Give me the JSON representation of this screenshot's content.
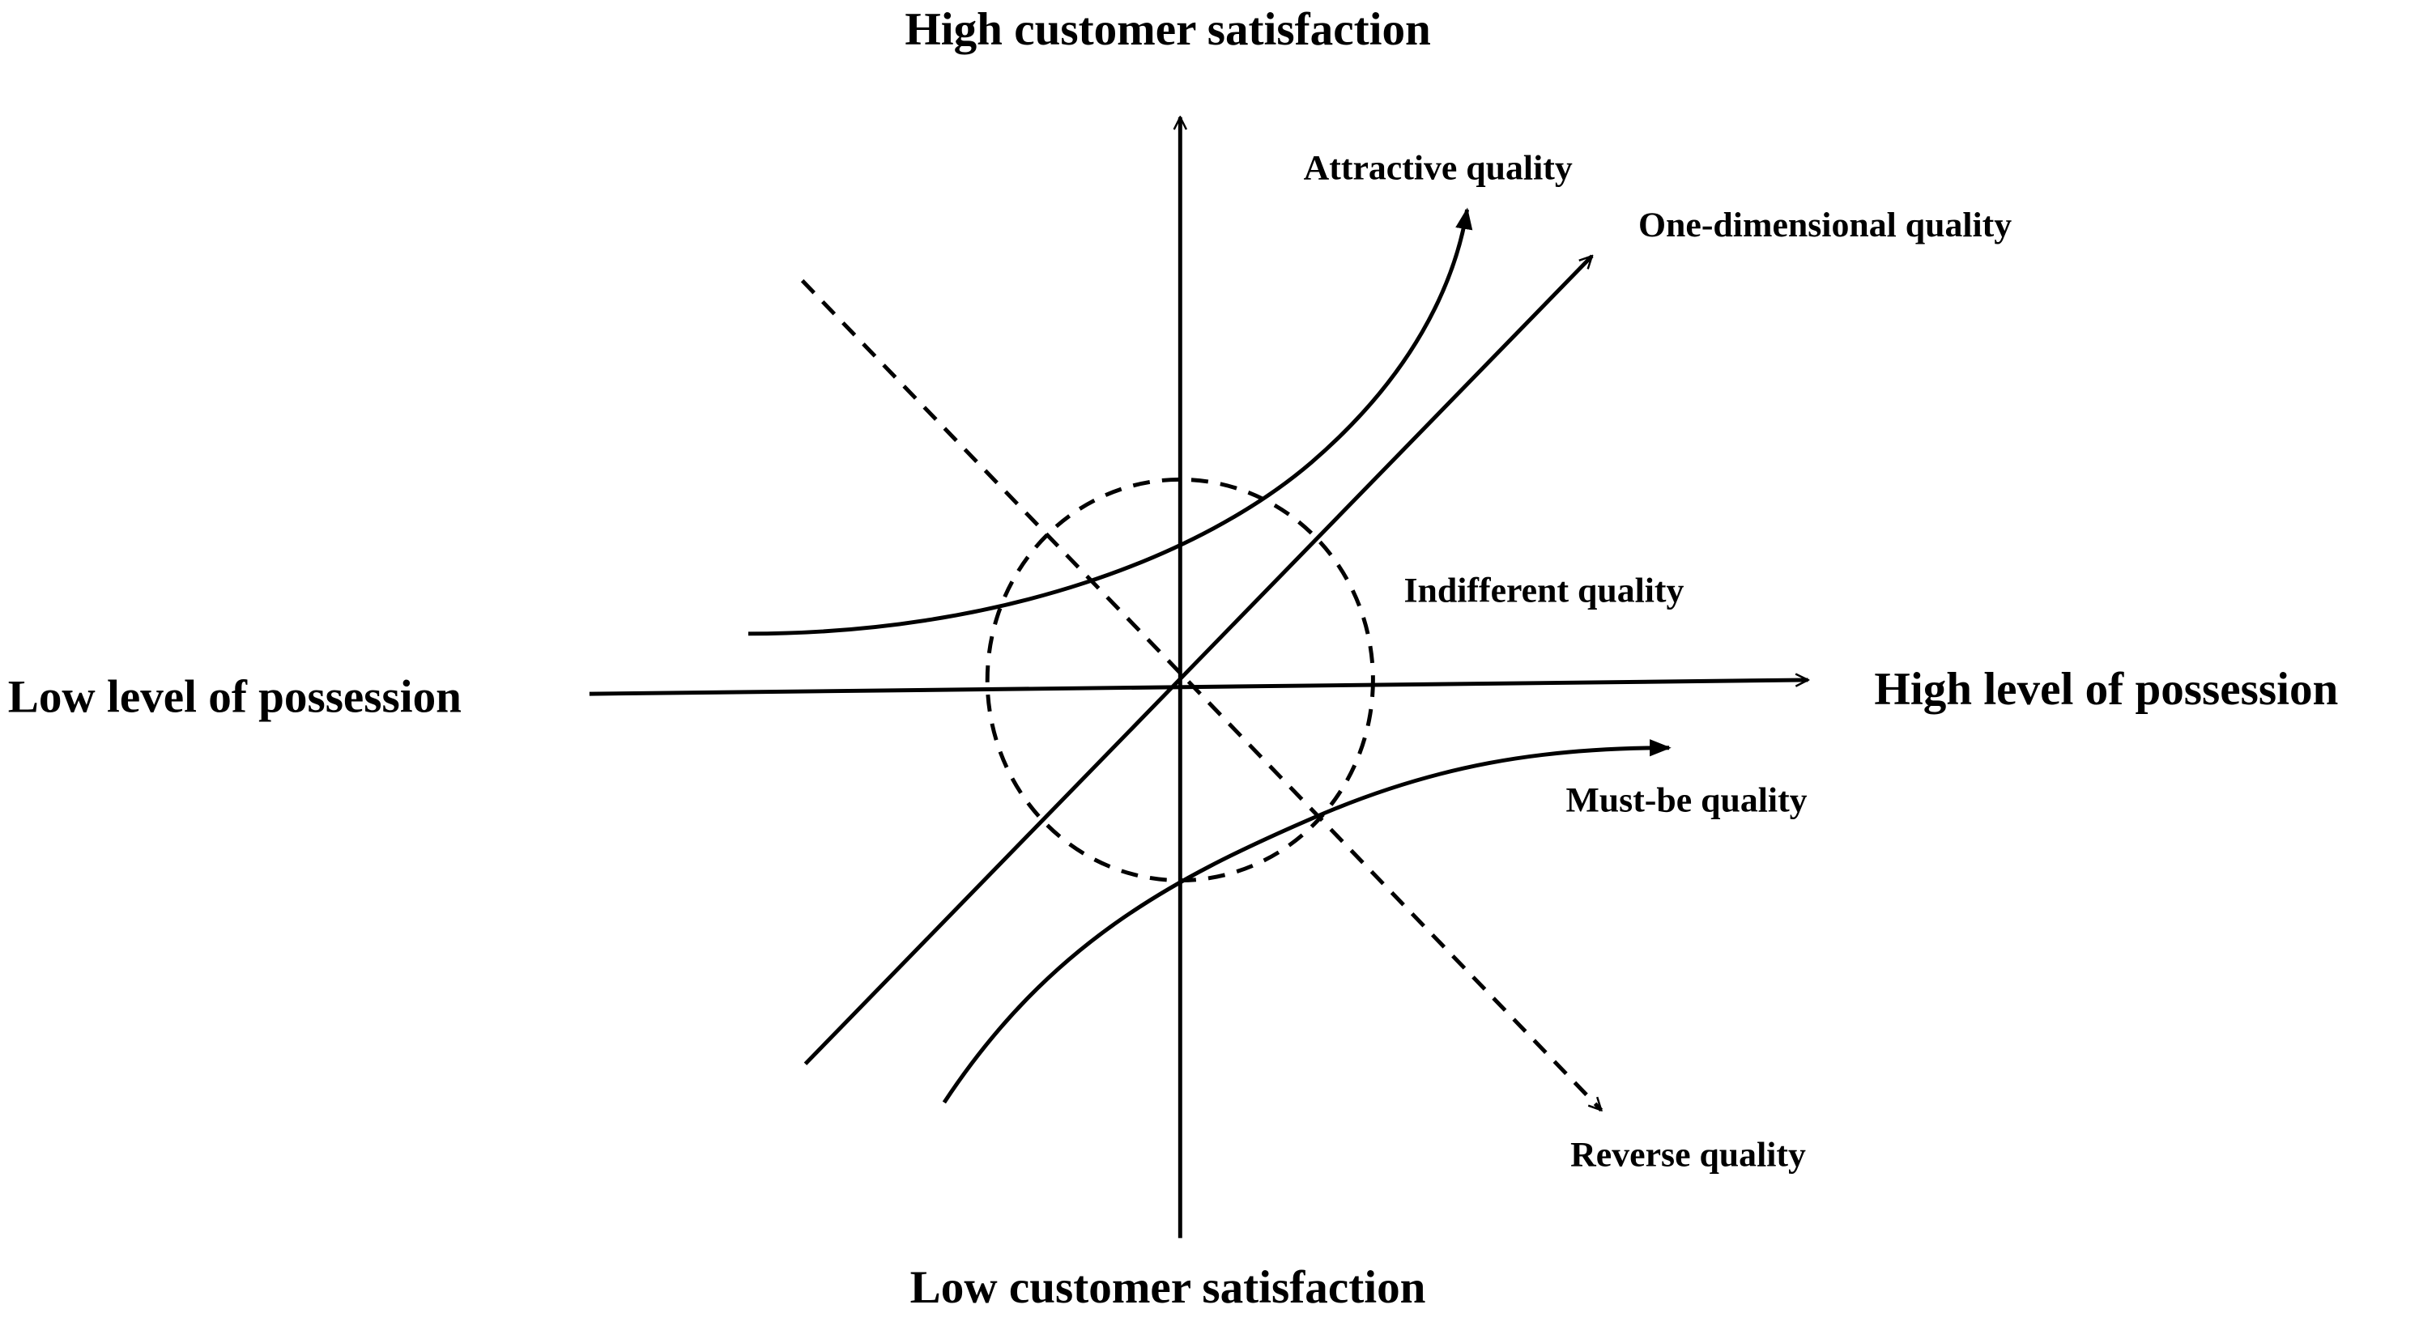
{
  "axes": {
    "top": "High customer satisfaction",
    "bottom": "Low customer satisfaction",
    "left": "Low level of possession",
    "right": "High level of possession"
  },
  "curves": {
    "attractive": "Attractive quality",
    "one_dimensional": "One-dimensional quality",
    "indifferent": "Indifferent quality",
    "must_be": "Must-be quality",
    "reverse": "Reverse quality"
  }
}
